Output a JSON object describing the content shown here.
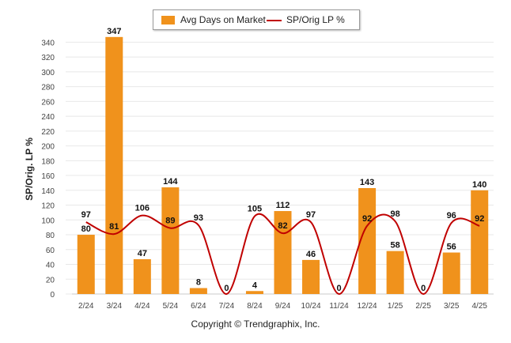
{
  "chart_data": {
    "type": "bar",
    "categories": [
      "2/24",
      "3/24",
      "4/24",
      "5/24",
      "6/24",
      "7/24",
      "8/24",
      "9/24",
      "10/24",
      "11/24",
      "12/24",
      "1/25",
      "2/25",
      "3/25",
      "4/25"
    ],
    "series": [
      {
        "name": "Avg Days on Market",
        "type": "bar",
        "color": "#f0921c",
        "values": [
          80,
          347,
          47,
          144,
          8,
          0,
          4,
          112,
          46,
          0,
          143,
          58,
          0,
          56,
          140
        ]
      },
      {
        "name": "SP/Orig LP %",
        "type": "line",
        "color": "#c00000",
        "values": [
          97,
          81,
          106,
          89,
          93,
          0,
          105,
          82,
          97,
          0,
          92,
          98,
          0,
          96,
          92
        ]
      }
    ],
    "ylabel": "SP/Orig. LP %",
    "ylim": [
      0,
      350
    ],
    "yticks": [
      0,
      20,
      40,
      60,
      80,
      100,
      120,
      140,
      160,
      180,
      200,
      220,
      240,
      260,
      280,
      300,
      320,
      340
    ],
    "grid": true,
    "legend": "top-center"
  },
  "footer": "Copyright © Trendgraphix, Inc."
}
